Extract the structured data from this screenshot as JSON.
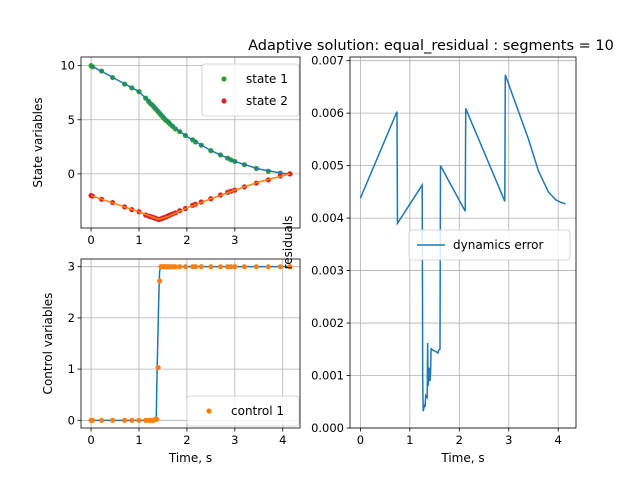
{
  "figure": {
    "title": "Adaptive solution: equal_residual : segments = 10"
  },
  "colors": {
    "green": "#2ca02c",
    "red": "#d62728",
    "blue": "#1f77b4",
    "orange": "#ff7f0e",
    "grid": "#b0b0b0"
  },
  "chart_data": [
    {
      "id": "states",
      "type": "line",
      "xlabel": "",
      "ylabel": "State variables",
      "xlim": [
        -0.21,
        4.36
      ],
      "ylim": [
        -5.0,
        10.8
      ],
      "xticks": [
        0,
        1,
        2,
        3
      ],
      "yticks": [
        0,
        5,
        10
      ],
      "grid": true,
      "legend": "top-right",
      "series": [
        {
          "name": "state 1",
          "color": "#2ca02c",
          "style": "markers",
          "x": [
            0.0,
            0.03,
            0.22,
            0.45,
            0.7,
            0.85,
            1.0,
            1.14,
            1.2,
            1.24,
            1.28,
            1.31,
            1.34,
            1.37,
            1.4,
            1.43,
            1.46,
            1.49,
            1.52,
            1.55,
            1.58,
            1.62,
            1.65,
            1.7,
            1.76,
            1.85,
            1.97,
            2.12,
            2.18,
            2.3,
            2.5,
            2.7,
            2.85,
            2.92,
            3.0,
            3.2,
            3.45,
            3.7,
            3.95,
            4.15
          ],
          "y": [
            10.0,
            9.9,
            9.5,
            8.9,
            8.3,
            7.95,
            7.6,
            7.0,
            6.7,
            6.5,
            6.35,
            6.2,
            6.05,
            5.9,
            5.75,
            5.6,
            5.45,
            5.3,
            5.15,
            5.0,
            4.9,
            4.75,
            4.6,
            4.4,
            4.15,
            3.9,
            3.55,
            3.15,
            2.95,
            2.65,
            2.15,
            1.75,
            1.45,
            1.3,
            1.15,
            0.85,
            0.5,
            0.25,
            0.07,
            0.0
          ]
        },
        {
          "name": "",
          "color": "#1f77b4",
          "style": "line",
          "x": [
            0.0,
            0.5,
            1.0,
            1.4,
            1.7,
            2.0,
            2.5,
            3.0,
            3.5,
            4.0,
            4.15
          ],
          "y": [
            10.0,
            8.8,
            7.6,
            5.8,
            4.45,
            3.45,
            2.15,
            1.15,
            0.45,
            0.05,
            0.0
          ]
        },
        {
          "name": "state 2",
          "color": "#d62728",
          "style": "markers",
          "x": [
            0.0,
            0.03,
            0.22,
            0.45,
            0.7,
            0.85,
            1.0,
            1.14,
            1.2,
            1.24,
            1.28,
            1.31,
            1.34,
            1.37,
            1.4,
            1.43,
            1.46,
            1.49,
            1.52,
            1.55,
            1.58,
            1.62,
            1.65,
            1.7,
            1.76,
            1.85,
            1.97,
            2.12,
            2.18,
            2.3,
            2.5,
            2.7,
            2.85,
            2.92,
            3.0,
            3.2,
            3.45,
            3.7,
            3.95,
            4.15
          ],
          "y": [
            -2.0,
            -2.05,
            -2.35,
            -2.65,
            -3.05,
            -3.3,
            -3.5,
            -3.8,
            -3.9,
            -3.95,
            -4.0,
            -4.05,
            -4.1,
            -4.15,
            -4.2,
            -4.2,
            -4.15,
            -4.1,
            -4.05,
            -4.0,
            -3.95,
            -3.85,
            -3.8,
            -3.7,
            -3.6,
            -3.4,
            -3.2,
            -2.9,
            -2.8,
            -2.6,
            -2.3,
            -1.95,
            -1.7,
            -1.6,
            -1.5,
            -1.2,
            -0.85,
            -0.55,
            -0.2,
            0.0
          ]
        },
        {
          "name": "",
          "color": "#ff7f0e",
          "style": "line",
          "x": [
            0.0,
            0.5,
            1.0,
            1.4,
            1.6,
            2.0,
            2.5,
            3.0,
            3.5,
            4.15
          ],
          "y": [
            -2.0,
            -2.75,
            -3.5,
            -4.2,
            -3.95,
            -3.15,
            -2.3,
            -1.5,
            -0.75,
            0.0
          ]
        }
      ]
    },
    {
      "id": "controls",
      "type": "line",
      "xlabel": "Time, s",
      "ylabel": "Control variables",
      "xlim": [
        -0.21,
        4.36
      ],
      "ylim": [
        -0.15,
        3.15
      ],
      "xticks": [
        0,
        1,
        2,
        3,
        4
      ],
      "yticks": [
        0,
        1,
        2,
        3
      ],
      "grid": true,
      "legend": "lower-right",
      "series": [
        {
          "name": "",
          "color": "#1f77b4",
          "style": "line",
          "x": [
            0.0,
            1.36,
            1.37,
            1.41,
            1.43,
            1.45,
            4.15
          ],
          "y": [
            0.0,
            0.0,
            0.6,
            2.3,
            2.9,
            3.0,
            3.0
          ]
        },
        {
          "name": "control 1",
          "color": "#ff7f0e",
          "style": "markers",
          "x": [
            0.0,
            0.03,
            0.22,
            0.45,
            0.7,
            0.85,
            1.0,
            1.14,
            1.2,
            1.24,
            1.28,
            1.31,
            1.34,
            1.37,
            1.4,
            1.43,
            1.46,
            1.49,
            1.52,
            1.55,
            1.58,
            1.62,
            1.65,
            1.7,
            1.76,
            1.85,
            1.97,
            2.12,
            2.18,
            2.3,
            2.5,
            2.7,
            2.85,
            2.92,
            3.0,
            3.2,
            3.45,
            3.7,
            3.95,
            4.15
          ],
          "y": [
            0.0,
            0.0,
            0.0,
            0.0,
            0.0,
            0.0,
            0.0,
            0.0,
            0.0,
            0.0,
            0.0,
            0.0,
            0.02,
            0.02,
            1.03,
            2.72,
            3.0,
            3.0,
            3.0,
            3.0,
            3.0,
            3.0,
            3.0,
            3.0,
            3.0,
            3.0,
            3.0,
            3.0,
            3.0,
            3.0,
            3.0,
            3.0,
            3.0,
            3.0,
            3.0,
            3.0,
            3.0,
            3.0,
            3.0,
            3.0
          ]
        }
      ]
    },
    {
      "id": "residuals",
      "type": "line",
      "xlabel": "Time, s",
      "ylabel": "residuals",
      "xlim": [
        -0.21,
        4.36
      ],
      "ylim": [
        0.0,
        0.00707
      ],
      "xticks": [
        0,
        1,
        2,
        3,
        4
      ],
      "yticks": [
        0.0,
        0.001,
        0.002,
        0.003,
        0.004,
        0.005,
        0.006,
        0.007
      ],
      "ytick_labels": [
        "0.000",
        "0.001",
        "0.002",
        "0.003",
        "0.004",
        "0.005",
        "0.006",
        "0.007"
      ],
      "grid": true,
      "legend": "center-right",
      "series": [
        {
          "name": "dynamics error",
          "color": "#1f77b4",
          "style": "line",
          "x": [
            0.0,
            0.74,
            0.75,
            1.25,
            1.26,
            1.27,
            1.3,
            1.31,
            1.32,
            1.35,
            1.36,
            1.37,
            1.38,
            1.39,
            1.4,
            1.41,
            1.42,
            1.43,
            1.44,
            1.57,
            1.58,
            1.61,
            1.62,
            2.12,
            2.13,
            2.92,
            2.93,
            3.4,
            3.6,
            3.8,
            3.95,
            4.05,
            4.15
          ],
          "y": [
            0.00438,
            0.00603,
            0.0039,
            0.00463,
            0.0009,
            0.00032,
            0.00045,
            0.0004,
            0.00062,
            0.00058,
            0.00162,
            0.0008,
            0.00091,
            0.00115,
            0.00092,
            0.0009,
            0.00108,
            0.00152,
            0.0015,
            0.00143,
            0.00148,
            0.0015,
            0.005,
            0.00413,
            0.00609,
            0.00432,
            0.00673,
            0.0055,
            0.0049,
            0.0045,
            0.00435,
            0.0043,
            0.00427
          ]
        }
      ]
    }
  ]
}
